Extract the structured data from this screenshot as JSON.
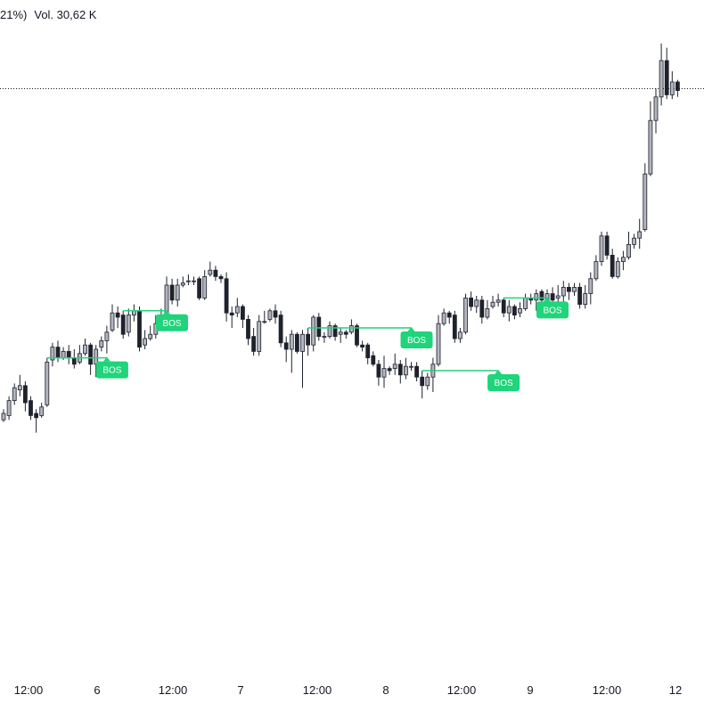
{
  "header": {
    "change_suffix": "21%)",
    "volume": "Vol. 30,62 K"
  },
  "colors": {
    "up_body": "#b2b5be",
    "down_body": "#1e222d",
    "wick": "#1e222d",
    "bos": "#1fd47a",
    "last_price_line": "#131722"
  },
  "chart_data": {
    "type": "candlestick",
    "title": "",
    "x_tick_labels": [
      "12:00",
      "6",
      "12:00",
      "7",
      "12:00",
      "8",
      "12:00",
      "9",
      "12:00",
      "12"
    ],
    "bos_label": "BOS",
    "bos_events": [
      {
        "from_index": 8,
        "to_index": 19
      },
      {
        "from_index": 22,
        "to_index": 30
      },
      {
        "from_index": 56,
        "to_index": 75
      },
      {
        "from_index": 77,
        "to_index": 91
      },
      {
        "from_index": 92,
        "to_index": 100
      }
    ],
    "last_price_line": true,
    "candles": [
      [
        52.4,
        52.7,
        52.9,
        52.3
      ],
      [
        52.6,
        53.3,
        53.5,
        52.4
      ],
      [
        53.3,
        53.9,
        54.1,
        53.1
      ],
      [
        53.8,
        54.0,
        54.5,
        53.5
      ],
      [
        54.0,
        53.2,
        54.2,
        52.8
      ],
      [
        53.3,
        52.6,
        53.5,
        52.4
      ],
      [
        52.7,
        52.5,
        52.9,
        51.8
      ],
      [
        52.6,
        53.0,
        53.2,
        52.5
      ],
      [
        53.1,
        55.1,
        55.3,
        53.0
      ],
      [
        55.2,
        55.8,
        56.0,
        54.9
      ],
      [
        55.8,
        55.3,
        56.1,
        55.1
      ],
      [
        55.3,
        55.6,
        55.8,
        55.2
      ],
      [
        55.6,
        55.3,
        55.9,
        55.0
      ],
      [
        55.3,
        55.0,
        55.7,
        54.8
      ],
      [
        55.1,
        55.5,
        55.9,
        55.0
      ],
      [
        55.5,
        55.9,
        56.2,
        55.4
      ],
      [
        55.9,
        55.0,
        56.0,
        54.5
      ],
      [
        55.0,
        55.7,
        55.9,
        54.4
      ],
      [
        55.8,
        56.1,
        56.3,
        55.6
      ],
      [
        56.1,
        56.5,
        56.8,
        55.5
      ],
      [
        56.6,
        57.4,
        57.8,
        56.5
      ],
      [
        57.4,
        57.2,
        57.7,
        56.7
      ],
      [
        57.3,
        56.4,
        57.5,
        56.2
      ],
      [
        56.5,
        57.3,
        57.6,
        56.3
      ],
      [
        57.3,
        57.5,
        57.8,
        57.0
      ],
      [
        57.5,
        55.8,
        57.7,
        55.6
      ],
      [
        55.9,
        56.2,
        56.6,
        55.7
      ],
      [
        56.2,
        56.4,
        56.8,
        56.1
      ],
      [
        56.4,
        56.9,
        57.3,
        56.2
      ],
      [
        56.9,
        57.3,
        57.6,
        56.8
      ],
      [
        57.3,
        58.7,
        59.1,
        57.0
      ],
      [
        58.7,
        58.0,
        59.0,
        57.8
      ],
      [
        58.0,
        58.7,
        59.0,
        57.7
      ],
      [
        58.7,
        58.8,
        59.1,
        58.6
      ],
      [
        58.9,
        58.9,
        59.2,
        58.7
      ],
      [
        58.9,
        58.9,
        59.1,
        58.7
      ],
      [
        59.0,
        58.1,
        59.1,
        58.0
      ],
      [
        58.1,
        59.1,
        59.4,
        58.0
      ],
      [
        59.2,
        59.4,
        59.8,
        59.1
      ],
      [
        59.4,
        59.1,
        59.6,
        58.9
      ],
      [
        59.1,
        59.0,
        59.2,
        58.8
      ],
      [
        59.0,
        57.4,
        59.3,
        57.0
      ],
      [
        57.4,
        57.3,
        57.7,
        56.7
      ],
      [
        57.4,
        57.7,
        58.1,
        57.2
      ],
      [
        57.7,
        57.1,
        57.8,
        56.7
      ],
      [
        57.1,
        56.2,
        57.3,
        55.9
      ],
      [
        56.3,
        55.6,
        56.7,
        55.4
      ],
      [
        55.6,
        57.0,
        57.3,
        55.4
      ],
      [
        57.0,
        57.0,
        57.5,
        56.9
      ],
      [
        57.1,
        57.5,
        57.6,
        57.0
      ],
      [
        57.5,
        57.2,
        57.8,
        56.9
      ],
      [
        57.3,
        56.0,
        57.5,
        55.8
      ],
      [
        56.0,
        55.7,
        56.3,
        55.1
      ],
      [
        55.7,
        56.4,
        56.6,
        54.6
      ],
      [
        56.4,
        55.6,
        56.5,
        55.5
      ],
      [
        55.6,
        56.4,
        56.6,
        53.9
      ],
      [
        56.4,
        55.9,
        56.7,
        55.4
      ],
      [
        55.9,
        57.2,
        57.3,
        55.6
      ],
      [
        57.2,
        56.3,
        57.4,
        56.1
      ],
      [
        56.3,
        56.3,
        56.5,
        56.0
      ],
      [
        56.3,
        56.8,
        57.0,
        56.2
      ],
      [
        56.8,
        56.3,
        56.9,
        56.1
      ],
      [
        56.4,
        56.5,
        56.7,
        56.0
      ],
      [
        56.5,
        56.4,
        56.6,
        56.2
      ],
      [
        56.5,
        56.8,
        57.1,
        56.4
      ],
      [
        56.8,
        55.9,
        56.9,
        55.8
      ],
      [
        55.9,
        55.8,
        56.1,
        55.6
      ],
      [
        55.9,
        55.3,
        56.0,
        55.0
      ],
      [
        55.4,
        55.0,
        55.6,
        54.9
      ],
      [
        55.0,
        54.4,
        55.2,
        54.0
      ],
      [
        54.4,
        54.8,
        55.4,
        53.9
      ],
      [
        54.8,
        54.7,
        54.9,
        54.5
      ],
      [
        54.8,
        55.0,
        55.5,
        54.5
      ],
      [
        55.0,
        54.5,
        55.2,
        54.1
      ],
      [
        54.5,
        54.9,
        55.3,
        54.3
      ],
      [
        54.9,
        54.9,
        55.1,
        54.7
      ],
      [
        54.9,
        54.4,
        55.1,
        54.2
      ],
      [
        54.4,
        54.0,
        54.7,
        53.4
      ],
      [
        54.0,
        54.4,
        54.6,
        53.8
      ],
      [
        54.4,
        55.0,
        55.3,
        53.7
      ],
      [
        55.0,
        56.9,
        57.3,
        54.9
      ],
      [
        56.9,
        57.4,
        57.6,
        56.8
      ],
      [
        57.4,
        57.2,
        57.5,
        56.9
      ],
      [
        57.3,
        56.2,
        57.5,
        56.0
      ],
      [
        56.2,
        56.5,
        56.7,
        56.0
      ],
      [
        56.5,
        58.1,
        58.3,
        56.4
      ],
      [
        58.1,
        57.7,
        58.4,
        57.5
      ],
      [
        57.7,
        58.0,
        58.2,
        57.4
      ],
      [
        58.0,
        57.2,
        58.2,
        56.9
      ],
      [
        57.2,
        57.6,
        58.0,
        57.1
      ],
      [
        57.7,
        57.9,
        58.2,
        57.6
      ],
      [
        57.9,
        58.0,
        58.3,
        57.7
      ],
      [
        58.0,
        57.4,
        58.1,
        57.2
      ],
      [
        57.4,
        57.7,
        58.0,
        57.0
      ],
      [
        57.7,
        57.3,
        57.8,
        57.1
      ],
      [
        57.4,
        57.6,
        57.9,
        57.2
      ],
      [
        57.6,
        58.1,
        58.3,
        57.5
      ],
      [
        58.1,
        58.0,
        58.3,
        57.8
      ],
      [
        58.0,
        58.3,
        58.5,
        57.5
      ],
      [
        58.4,
        58.0,
        58.5,
        57.6
      ],
      [
        58.0,
        58.3,
        58.5,
        57.8
      ],
      [
        58.3,
        58.0,
        58.6,
        57.9
      ],
      [
        58.1,
        58.2,
        58.7,
        57.8
      ],
      [
        58.2,
        58.6,
        58.9,
        57.9
      ],
      [
        58.6,
        58.4,
        58.8,
        58.0
      ],
      [
        58.4,
        58.6,
        58.8,
        58.2
      ],
      [
        58.6,
        57.8,
        58.8,
        57.6
      ],
      [
        57.8,
        58.3,
        58.7,
        57.6
      ],
      [
        58.3,
        59.0,
        59.3,
        57.8
      ],
      [
        59.0,
        59.8,
        60.1,
        58.9
      ],
      [
        59.8,
        61.0,
        61.2,
        59.6
      ],
      [
        61.0,
        60.1,
        61.2,
        59.9
      ],
      [
        60.1,
        59.1,
        60.4,
        59.0
      ],
      [
        59.1,
        59.8,
        60.0,
        59.0
      ],
      [
        59.8,
        60.0,
        60.3,
        59.4
      ],
      [
        60.0,
        60.6,
        61.2,
        59.9
      ],
      [
        60.6,
        60.9,
        61.1,
        60.4
      ],
      [
        60.9,
        61.2,
        61.8,
        60.4
      ],
      [
        61.3,
        63.9,
        64.4,
        61.2
      ],
      [
        63.9,
        66.4,
        67.3,
        63.8
      ],
      [
        66.4,
        67.5,
        67.9,
        65.8
      ],
      [
        67.5,
        69.2,
        70.0,
        67.1
      ],
      [
        69.2,
        67.6,
        69.8,
        67.4
      ],
      [
        67.6,
        68.2,
        68.7,
        67.4
      ],
      [
        68.2,
        67.8,
        68.3,
        67.5
      ]
    ]
  }
}
